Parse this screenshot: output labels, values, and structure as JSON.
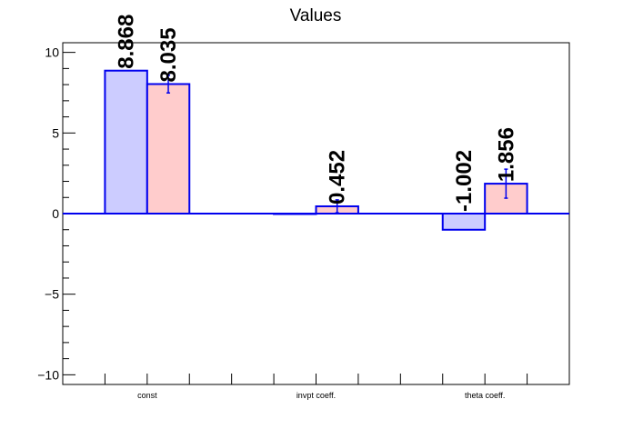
{
  "chart_data": {
    "type": "bar",
    "title": "Values",
    "xlabel": "",
    "ylabel": "",
    "ylim": [
      -10.6,
      10.6
    ],
    "yticks": [
      -10,
      -5,
      0,
      5,
      10
    ],
    "categories": [
      "const",
      "invpt coeff.",
      "theta coeff."
    ],
    "series": [
      {
        "values": [
          8.868,
          0,
          -1.002
        ],
        "errors": [
          0,
          0,
          0
        ],
        "labels": [
          "8.868",
          "",
          "-1.002"
        ],
        "fill": "#ccccff",
        "stroke": "#0000ee"
      },
      {
        "values": [
          8.035,
          0.452,
          1.856
        ],
        "errors": [
          0.55,
          0.4,
          0.9
        ],
        "labels": [
          "8.035",
          "0.452",
          "1.856"
        ],
        "fill": "#ffcccc",
        "stroke": "#0000ee"
      }
    ],
    "grid": false,
    "zero_line_color": "#0000ee"
  }
}
